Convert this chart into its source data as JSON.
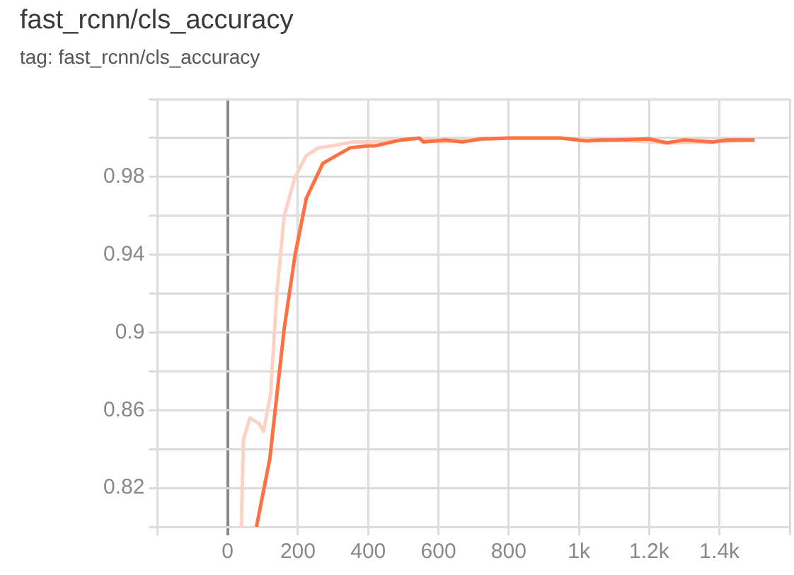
{
  "chart_data": {
    "type": "line",
    "title": "fast_rcnn/cls_accuracy",
    "subtitle": "tag: fast_rcnn/cls_accuracy",
    "series": [
      {
        "color": "#fcd2c4",
        "x": [
          39,
          45,
          63,
          90,
          102,
          122,
          141,
          161,
          192,
          224,
          259,
          298,
          357,
          400,
          494,
          545,
          600,
          700,
          800,
          950,
          1020,
          1100,
          1250,
          1380,
          1500
        ],
        "values": [
          0.8,
          0.845,
          0.856,
          0.853,
          0.849,
          0.868,
          0.922,
          0.96,
          0.98,
          0.991,
          0.995,
          0.996,
          0.998,
          0.998,
          0.999,
          1.0,
          0.998,
          0.999,
          1.0,
          1.0,
          0.9985,
          0.999,
          0.9975,
          0.998,
          0.999
        ]
      },
      {
        "color": "#ff7043",
        "x": [
          82,
          120,
          161,
          192,
          224,
          271,
          349,
          400,
          420,
          494,
          545,
          557,
          620,
          670,
          720,
          800,
          950,
          1020,
          1060,
          1100,
          1200,
          1250,
          1300,
          1380,
          1420,
          1500
        ],
        "values": [
          0.8,
          0.835,
          0.902,
          0.94,
          0.969,
          0.987,
          0.995,
          0.996,
          0.996,
          0.999,
          1.0,
          0.998,
          0.999,
          0.998,
          0.9995,
          1.0,
          1.0,
          0.9985,
          0.999,
          0.999,
          0.9995,
          0.9975,
          0.999,
          0.998,
          0.999,
          0.999
        ]
      }
    ],
    "xlim": [
      -200,
      1600
    ],
    "xticks": [
      {
        "value": -200,
        "label": null
      },
      0,
      200,
      400,
      600,
      800,
      {
        "value": 1000,
        "label": "1k"
      },
      {
        "value": 1200,
        "label": "1.2k"
      },
      {
        "value": 1400,
        "label": "1.4k"
      },
      {
        "value": 1600,
        "label": null
      }
    ],
    "ylim": [
      0.8,
      1.02
    ],
    "yticks": [
      {
        "value": 0.8,
        "label": null
      },
      0.82,
      {
        "value": 0.84,
        "label": null
      },
      0.86,
      {
        "value": 0.88,
        "label": null
      },
      0.9,
      {
        "value": 0.92,
        "label": null
      },
      0.94,
      {
        "value": 0.96,
        "label": null
      },
      0.98,
      {
        "value": 1.0,
        "label": null
      },
      {
        "value": 1.02,
        "label": null
      }
    ],
    "grid": true,
    "legend": false,
    "line_style": "solid"
  }
}
